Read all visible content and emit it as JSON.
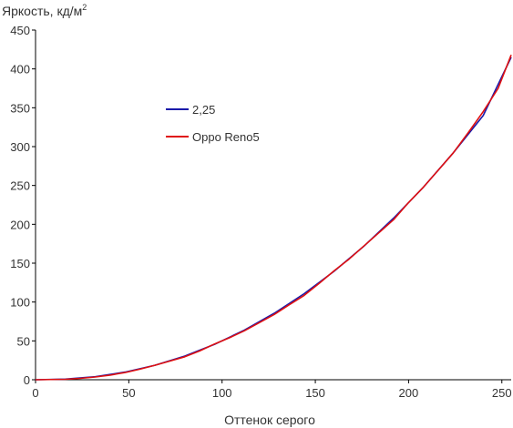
{
  "chart_data": {
    "type": "line",
    "title": "",
    "ylabel": "Яркость, кд/м",
    "ylabel_sup": "2",
    "xlabel": "Оттенок серого",
    "xlim": [
      0,
      255
    ],
    "ylim": [
      0,
      450
    ],
    "xticks": [
      0,
      50,
      100,
      150,
      200,
      250
    ],
    "yticks": [
      0,
      50,
      100,
      150,
      200,
      250,
      300,
      350,
      400,
      450
    ],
    "grid": false,
    "legend": "upper-left",
    "series": [
      {
        "name": "2,25",
        "color": "#1a1aaa",
        "x": [
          0,
          16,
          32,
          48,
          64,
          80,
          96,
          112,
          128,
          144,
          160,
          176,
          192,
          208,
          224,
          240,
          255
        ],
        "y": [
          0,
          0.8,
          3.9,
          9.8,
          18.6,
          30.5,
          45.6,
          63.9,
          85.5,
          110.7,
          139.4,
          171.8,
          208,
          248,
          292,
          340,
          415
        ]
      },
      {
        "name": "Oppo Reno5",
        "color": "#e01010",
        "x": [
          0,
          16,
          24,
          32,
          40,
          48,
          56,
          64,
          72,
          80,
          88,
          96,
          104,
          112,
          120,
          128,
          136,
          144,
          152,
          160,
          168,
          176,
          184,
          192,
          200,
          208,
          216,
          224,
          232,
          240,
          248,
          255
        ],
        "y": [
          0,
          0.6,
          1.8,
          3.5,
          6.0,
          9.2,
          13.6,
          18.6,
          24.0,
          29.5,
          37.0,
          46.0,
          54.0,
          63.0,
          73.5,
          84.0,
          96.5,
          108.5,
          124.0,
          140.0,
          155.0,
          172.0,
          189.0,
          206.0,
          228.0,
          248.0,
          270.0,
          292.0,
          318.0,
          345.0,
          375.0,
          418.0
        ]
      }
    ]
  }
}
